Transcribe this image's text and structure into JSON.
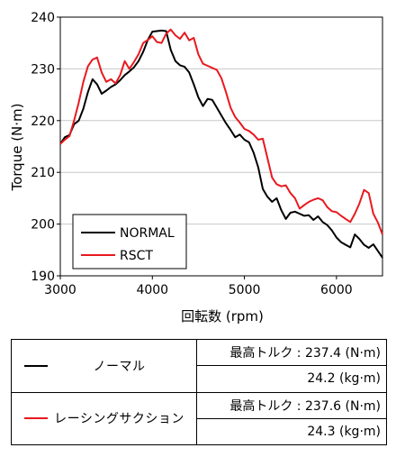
{
  "chart_data": {
    "type": "line",
    "xlabel": "回転数 (rpm)",
    "ylabel": "Torque (N·m)",
    "xlim": [
      3000,
      6500
    ],
    "ylim": [
      190,
      240
    ],
    "xticks": [
      3000,
      4000,
      5000,
      6000
    ],
    "yticks": [
      190,
      200,
      210,
      220,
      230,
      240
    ],
    "grid": "horizontal",
    "legend_position": "bottom-left",
    "series": [
      {
        "name": "NORMAL",
        "color": "#000000",
        "x": [
          3000,
          3050,
          3100,
          3150,
          3200,
          3250,
          3300,
          3350,
          3400,
          3450,
          3500,
          3550,
          3600,
          3650,
          3700,
          3750,
          3800,
          3850,
          3900,
          3950,
          4000,
          4050,
          4100,
          4150,
          4200,
          4250,
          4300,
          4350,
          4400,
          4450,
          4500,
          4550,
          4600,
          4650,
          4700,
          4750,
          4800,
          4850,
          4900,
          4950,
          5000,
          5050,
          5100,
          5150,
          5200,
          5250,
          5300,
          5350,
          5400,
          5450,
          5500,
          5550,
          5600,
          5650,
          5700,
          5750,
          5800,
          5850,
          5900,
          5950,
          6000,
          6050,
          6100,
          6150,
          6200,
          6250,
          6300,
          6350,
          6400,
          6450,
          6500
        ],
        "y": [
          215.5,
          216.8,
          217.2,
          219.3,
          220.0,
          222.3,
          225.5,
          228.0,
          227.0,
          225.2,
          225.8,
          226.5,
          227.0,
          227.8,
          228.8,
          229.5,
          230.3,
          231.5,
          233.3,
          235.6,
          237.2,
          237.3,
          237.4,
          237.3,
          233.7,
          231.5,
          230.7,
          230.4,
          229.3,
          227.0,
          224.5,
          222.8,
          224.2,
          224.0,
          222.5,
          221.0,
          219.5,
          218.2,
          216.8,
          217.3,
          216.3,
          215.8,
          213.8,
          211.0,
          206.8,
          205.3,
          204.3,
          205.0,
          202.7,
          201.0,
          202.2,
          202.4,
          202.0,
          201.6,
          201.7,
          200.8,
          201.5,
          200.4,
          199.8,
          198.8,
          197.4,
          196.5,
          196.0,
          195.5,
          198.0,
          197.1,
          196.0,
          195.4,
          196.1,
          194.8,
          193.5
        ]
      },
      {
        "name": "RSCT",
        "color": "#e8191f",
        "x": [
          3000,
          3050,
          3100,
          3150,
          3200,
          3250,
          3300,
          3350,
          3400,
          3450,
          3500,
          3550,
          3600,
          3650,
          3700,
          3750,
          3800,
          3850,
          3900,
          3950,
          4000,
          4050,
          4100,
          4150,
          4200,
          4250,
          4300,
          4350,
          4400,
          4450,
          4500,
          4550,
          4600,
          4650,
          4700,
          4750,
          4800,
          4850,
          4900,
          4950,
          5000,
          5050,
          5100,
          5150,
          5200,
          5250,
          5300,
          5350,
          5400,
          5450,
          5500,
          5550,
          5600,
          5650,
          5700,
          5750,
          5800,
          5850,
          5900,
          5950,
          6000,
          6050,
          6100,
          6150,
          6200,
          6250,
          6300,
          6350,
          6400,
          6450,
          6500
        ],
        "y": [
          215.5,
          216.3,
          217.0,
          220.0,
          223.5,
          227.5,
          230.5,
          231.8,
          232.2,
          229.3,
          227.5,
          228.0,
          227.2,
          228.8,
          231.5,
          230.0,
          231.3,
          232.8,
          235.0,
          235.6,
          236.3,
          235.2,
          235.0,
          236.8,
          237.6,
          236.5,
          235.8,
          237.0,
          235.5,
          236.0,
          232.8,
          231.0,
          230.6,
          230.2,
          229.8,
          228.2,
          225.5,
          222.5,
          220.7,
          219.6,
          218.4,
          218.0,
          217.3,
          216.3,
          216.5,
          212.8,
          209.0,
          207.7,
          207.3,
          207.5,
          206.0,
          205.0,
          203.0,
          203.7,
          204.3,
          204.7,
          205.0,
          204.6,
          203.3,
          202.5,
          202.3,
          201.6,
          201.0,
          200.4,
          202.0,
          204.0,
          206.6,
          206.0,
          202.0,
          200.3,
          198.0
        ]
      }
    ]
  },
  "table": {
    "rows": [
      {
        "legend": "ノーマル",
        "line_color": "#000000",
        "max_torque": "最高トルク : 237.4 (N·m)",
        "kgm": "24.2 (kg·m)"
      },
      {
        "legend": "レーシングサクション",
        "line_color": "#e8191f",
        "max_torque": "最高トルク : 237.6 (N·m)",
        "kgm": "24.3 (kg·m)"
      }
    ]
  }
}
